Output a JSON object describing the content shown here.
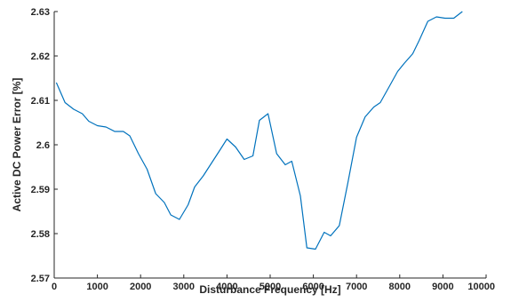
{
  "chart_data": {
    "type": "line",
    "title": "",
    "xlabel": "Disturbance Frequency [Hz]",
    "ylabel": "Active DC Power Error [%]",
    "xlim": [
      0,
      10000
    ],
    "ylim": [
      2.57,
      2.63
    ],
    "xticks": [
      0,
      1000,
      2000,
      3000,
      4000,
      5000,
      6000,
      7000,
      8000,
      9000,
      10000
    ],
    "xtick_labels": [
      "0",
      "1000",
      "2000",
      "3000",
      "4000",
      "5000",
      "6000",
      "7000",
      "8000",
      "9000",
      "10000"
    ],
    "yticks": [
      2.57,
      2.58,
      2.59,
      2.6,
      2.61,
      2.62,
      2.63
    ],
    "ytick_labels": [
      "2.57",
      "2.58",
      "2.59",
      "2.6",
      "2.61",
      "2.62",
      "2.63"
    ],
    "grid": false,
    "series": [
      {
        "color": "#0072bd",
        "x": [
          50,
          250,
          450,
          650,
          800,
          1000,
          1200,
          1400,
          1600,
          1750,
          1950,
          2150,
          2350,
          2550,
          2700,
          2900,
          3100,
          3250,
          3450,
          3650,
          3850,
          4000,
          4200,
          4400,
          4600,
          4750,
          4950,
          5150,
          5350,
          5500,
          5700,
          5850,
          6050,
          6250,
          6400,
          6600,
          6800,
          7000,
          7200,
          7400,
          7550,
          7750,
          7950,
          8100,
          8300,
          8450,
          8650,
          8850,
          9050,
          9250,
          9450
        ],
        "y": [
          2.614,
          2.6095,
          2.608,
          2.607,
          2.6053,
          2.6043,
          2.604,
          2.603,
          2.603,
          2.602,
          2.598,
          2.5945,
          2.589,
          2.587,
          2.5842,
          2.5832,
          2.5865,
          2.5905,
          2.593,
          2.596,
          2.599,
          2.6013,
          2.5995,
          2.5967,
          2.5975,
          2.6055,
          2.607,
          2.598,
          2.5955,
          2.5963,
          2.5885,
          2.5768,
          2.5765,
          2.5803,
          2.5795,
          2.5818,
          2.5915,
          2.6017,
          2.6063,
          2.6085,
          2.6095,
          2.613,
          2.6165,
          2.6183,
          2.6205,
          2.6235,
          2.6278,
          2.6288,
          2.6285,
          2.6285,
          2.63
        ]
      }
    ]
  }
}
